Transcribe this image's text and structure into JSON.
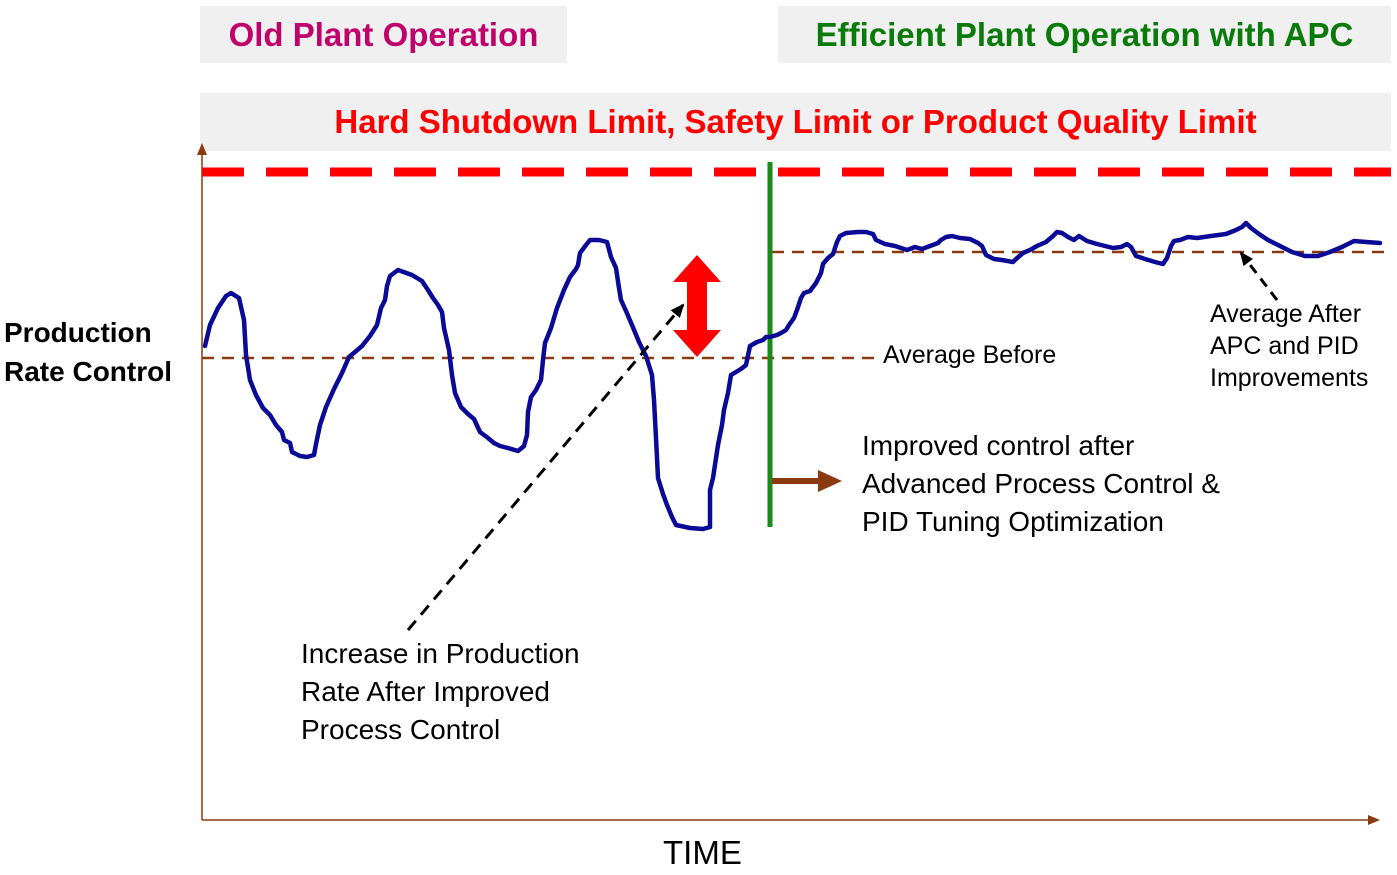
{
  "headers": {
    "old": "Old Plant Operation",
    "efficient": "Efficient Plant Operation with APC",
    "limit": "Hard Shutdown Limit, Safety Limit or Product Quality Limit"
  },
  "y_axis_label": [
    "Production",
    "Rate Control"
  ],
  "x_axis_label": "TIME",
  "annotations": {
    "average_before": "Average Before",
    "average_after": [
      "Average After",
      "APC and PID",
      "Improvements"
    ],
    "improved_control": [
      "Improved control after",
      "Advanced Process Control &",
      "PID Tuning Optimization"
    ],
    "increase": [
      "Increase in Production",
      "Rate After Improved",
      "Process Control"
    ]
  },
  "colors": {
    "old_header": "#c0006b",
    "efficient_header": "#0a7a0a",
    "limit": "#ff0000",
    "signal": "#0a0a96",
    "axis": "#8b3a0f",
    "divider": "#1a8a1a",
    "average": "#8b3a0f"
  },
  "icons": {
    "double_arrow": "red-double-arrow-icon",
    "right_arrow": "brown-right-arrow-icon"
  }
}
